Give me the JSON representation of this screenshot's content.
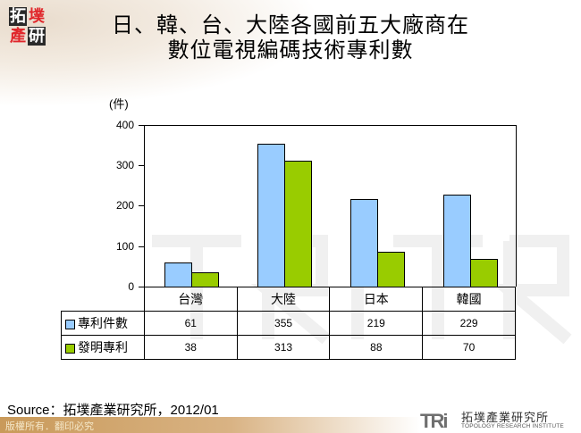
{
  "logo": {
    "chars": [
      "拓",
      "墣",
      "產",
      "研"
    ]
  },
  "title": {
    "line1": "日、韓、台、大陸各國前五大廠商在",
    "line2": "數位電視編碼技術專利數"
  },
  "chart_data": {
    "type": "bar",
    "title": "日、韓、台、大陸各國前五大廠商在數位電視編碼技術專利數",
    "ylabel": "(件)",
    "xlabel": "",
    "ylim": [
      0,
      400
    ],
    "yticks": [
      0,
      100,
      200,
      300,
      400
    ],
    "grid": false,
    "legend_position": "data-table-left",
    "categories": [
      "台灣",
      "大陸",
      "日本",
      "韓國"
    ],
    "series": [
      {
        "name": "專利件數",
        "color": "#99ccff",
        "values": [
          61,
          355,
          219,
          229
        ]
      },
      {
        "name": "發明專利",
        "color": "#99cc00",
        "values": [
          38,
          313,
          88,
          70
        ]
      }
    ]
  },
  "axis": {
    "unit": "(件)",
    "ticks": [
      "400",
      "300",
      "200",
      "100",
      "0"
    ]
  },
  "table": {
    "categories": [
      "台灣",
      "大陸",
      "日本",
      "韓國"
    ],
    "rows": [
      {
        "label": "專利件數",
        "values": [
          "61",
          "355",
          "219",
          "229"
        ]
      },
      {
        "label": "發明專利",
        "values": [
          "38",
          "313",
          "88",
          "70"
        ]
      }
    ]
  },
  "footer": {
    "source": "Source：拓墣產業研究所，2012/01",
    "rights": "版權所有．翻印必究",
    "brand_mark": "TRi",
    "brand_cn": "拓墣產業研究所",
    "brand_en": "TOPOLOGY RESEARCH INSTITUTE"
  }
}
